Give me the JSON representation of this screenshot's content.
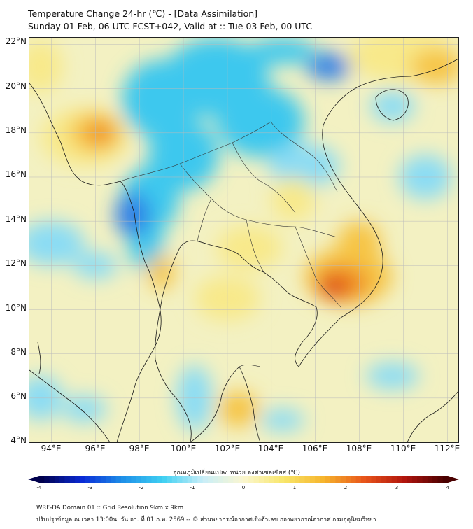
{
  "header": {
    "title_line1": "Temperature Change 24-hr (℃) - [Data Assimilation]",
    "title_line2": "Sunday 01 Feb, 06 UTC FCST+042, Valid at :: Tue 03 Feb, 00 UTC"
  },
  "map": {
    "lat_labels": [
      "22°N",
      "20°N",
      "18°N",
      "16°N",
      "14°N",
      "12°N",
      "10°N",
      "8°N",
      "6°N",
      "4°N"
    ],
    "lon_labels": [
      "94°E",
      "96°E",
      "98°E",
      "100°E",
      "102°E",
      "104°E",
      "106°E",
      "108°E",
      "110°E",
      "112°E"
    ],
    "lat_range": [
      4,
      22.3
    ],
    "lon_range": [
      93,
      112.5
    ],
    "field_colors": {
      "strong_cool": "#2f7fe6",
      "cool": "#3cc8ee",
      "light_cool": "#8adcf4",
      "neutral": "#f3f1c2",
      "light_warm": "#f8e98a",
      "warm": "#f6c444",
      "hot": "#ef8a20",
      "very_hot": "#dc3b16"
    }
  },
  "colorbar": {
    "title": "อุณหภูมิเปลี่ยนแปลง หน่วย องศาเซลเซียส (℃)",
    "ticks": [
      "-4",
      "-3",
      "-2",
      "-1",
      "0",
      "1",
      "2",
      "3",
      "4"
    ],
    "min": -4,
    "max": 4,
    "stops": [
      "#00004d",
      "#0a2ad6",
      "#1e8fe8",
      "#3fd0f2",
      "#c9eef8",
      "#fbf7d0",
      "#f8e66a",
      "#f6b42c",
      "#e8541a",
      "#b0140d",
      "#4a0000"
    ]
  },
  "footer": {
    "line1": "WRF-DA Domain 01 :: Grid Resolution 9km x 9km",
    "line2": "ปรับปรุงข้อมูล ณ เวลา 13:00น. วัน อา. ที่ 01 ก.พ. 2569 -- © ส่วนพยากรณ์อากาศเชิงตัวเลข กองพยากรณ์อากาศ กรมอุตุนิยมวิทยา"
  }
}
